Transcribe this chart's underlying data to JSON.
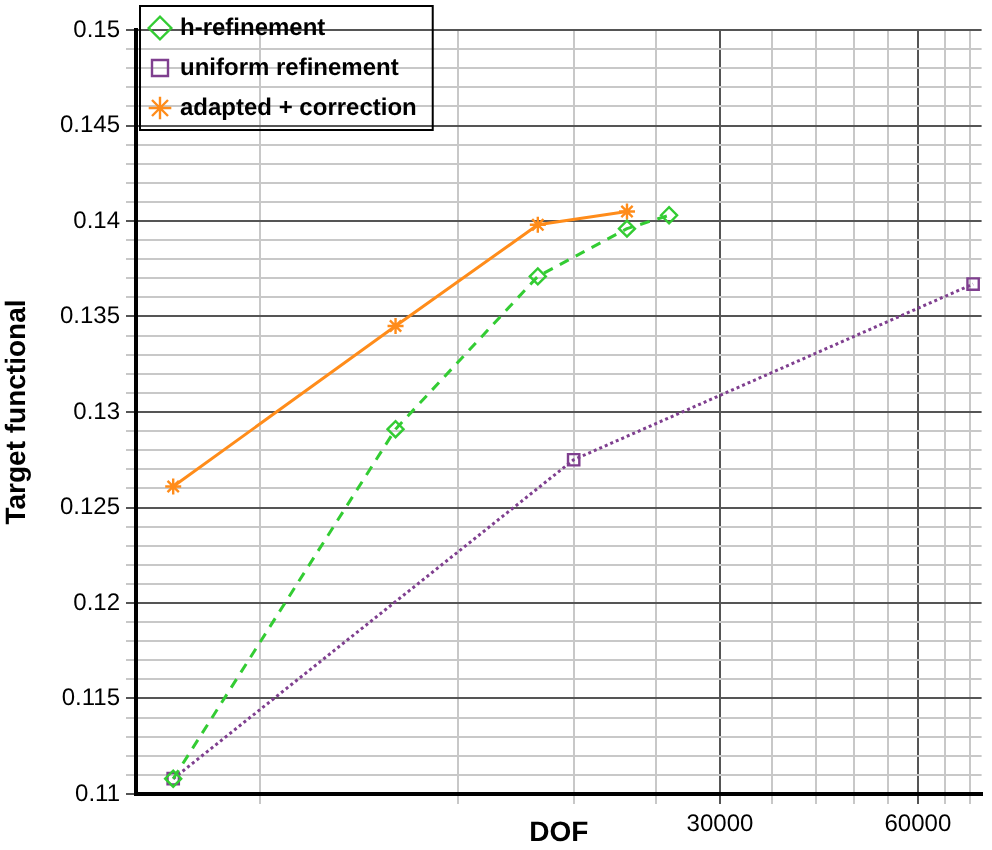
{
  "chart_data": {
    "type": "line",
    "xlabel": "DOF",
    "ylabel": "Target functional",
    "log": "x",
    "grid": true,
    "legend": "top left",
    "xlim": [
      3880,
      75000
    ],
    "xticks": [
      {
        "value": 6000,
        "label": null
      },
      {
        "value": 12000,
        "label": null
      },
      {
        "value": 18000,
        "label": null
      },
      {
        "value": 24000,
        "label": null
      },
      30000,
      {
        "value": 36000,
        "label": null
      },
      {
        "value": 42000,
        "label": null
      },
      {
        "value": 48000,
        "label": null
      },
      {
        "value": 54000,
        "label": null
      },
      60000,
      {
        "value": 66000,
        "label": null
      },
      {
        "value": 72000,
        "label": null
      }
    ],
    "ylim": [
      0.11,
      0.15
    ],
    "yticks": [
      0.11,
      {
        "value": 0.111,
        "label": null
      },
      {
        "value": 0.112,
        "label": null
      },
      {
        "value": 0.113,
        "label": null
      },
      {
        "value": 0.114,
        "label": null
      },
      0.115,
      {
        "value": 0.116,
        "label": null
      },
      {
        "value": 0.117,
        "label": null
      },
      {
        "value": 0.118,
        "label": null
      },
      {
        "value": 0.119,
        "label": null
      },
      0.12,
      {
        "value": 0.121,
        "label": null
      },
      {
        "value": 0.122,
        "label": null
      },
      {
        "value": 0.123,
        "label": null
      },
      {
        "value": 0.124,
        "label": null
      },
      0.125,
      {
        "value": 0.126,
        "label": null
      },
      {
        "value": 0.127,
        "label": null
      },
      {
        "value": 0.128,
        "label": null
      },
      {
        "value": 0.129,
        "label": null
      },
      0.13,
      {
        "value": 0.131,
        "label": null
      },
      {
        "value": 0.132,
        "label": null
      },
      {
        "value": 0.133,
        "label": null
      },
      {
        "value": 0.134,
        "label": null
      },
      0.135,
      {
        "value": 0.136,
        "label": null
      },
      {
        "value": 0.137,
        "label": null
      },
      {
        "value": 0.138,
        "label": null
      },
      {
        "value": 0.139,
        "label": null
      },
      0.14,
      {
        "value": 0.141,
        "label": null
      },
      {
        "value": 0.142,
        "label": null
      },
      {
        "value": 0.143,
        "label": null
      },
      {
        "value": 0.144,
        "label": null
      },
      0.145,
      {
        "value": 0.146,
        "label": null
      },
      {
        "value": 0.147,
        "label": null
      },
      {
        "value": 0.148,
        "label": null
      },
      {
        "value": 0.149,
        "label": null
      },
      0.15
    ],
    "series": [
      {
        "name": "h-refinement",
        "color": "#33cc33",
        "marker": "diamond",
        "line_style": "dashed",
        "x": [
          4420,
          9630,
          15850,
          21660,
          25100
        ],
        "values": [
          0.1108,
          0.1291,
          0.1371,
          0.1396,
          0.1403
        ]
      },
      {
        "name": "uniform refinement",
        "color": "#7f3f8f",
        "marker": "square",
        "line_style": "dotted",
        "x": [
          4420,
          17970,
          72800
        ],
        "values": [
          0.1108,
          0.1275,
          0.1367
        ]
      },
      {
        "name": "adapted + correction",
        "color": "#ff8c1a",
        "marker": "cross",
        "line_style": "solid",
        "x": [
          4420,
          9630,
          15850,
          21660
        ],
        "values": [
          0.1261,
          0.1345,
          0.1398,
          0.1405
        ]
      }
    ]
  }
}
